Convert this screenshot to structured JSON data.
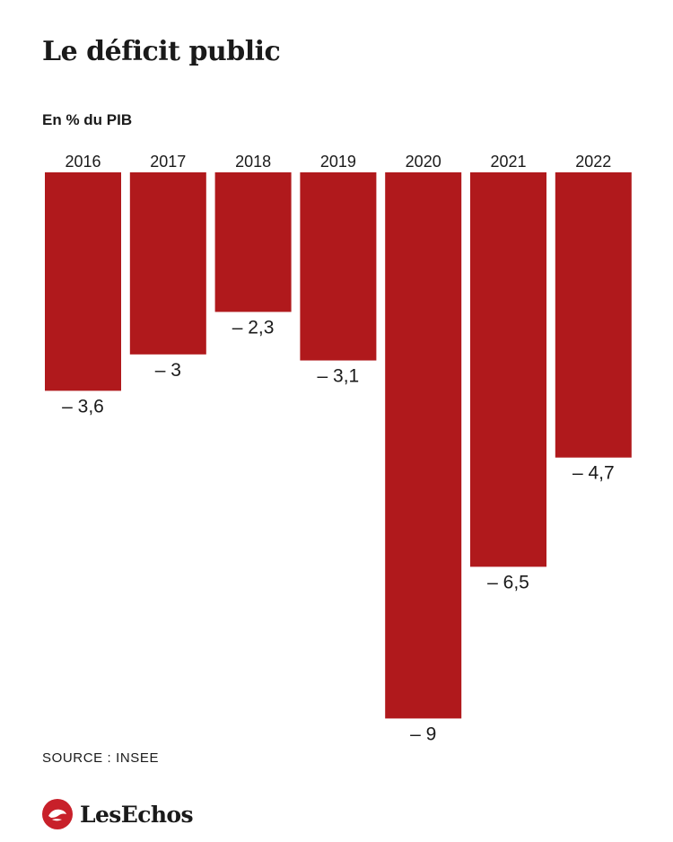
{
  "title": "Le déficit public",
  "subtitle": "En % du PIB",
  "source": "SOURCE :  INSEE",
  "brand": {
    "name": "LesEchos",
    "accent": "#c8202a"
  },
  "colors": {
    "bar": "#b0191c",
    "text": "#1a1a1a"
  },
  "chart_data": {
    "type": "bar",
    "categories": [
      "2016",
      "2017",
      "2018",
      "2019",
      "2020",
      "2021",
      "2022"
    ],
    "values": [
      -3.6,
      -3,
      -2.3,
      -3.1,
      -9,
      -6.5,
      -4.7
    ],
    "value_labels": [
      "– 3,6",
      "– 3",
      "– 2,3",
      "– 3,1",
      "– 9",
      "– 6,5",
      "– 4,7"
    ],
    "title": "Le déficit public",
    "ylabel": "En % du PIB",
    "ylim": [
      -9,
      0
    ],
    "grid": false,
    "legend": "none"
  }
}
